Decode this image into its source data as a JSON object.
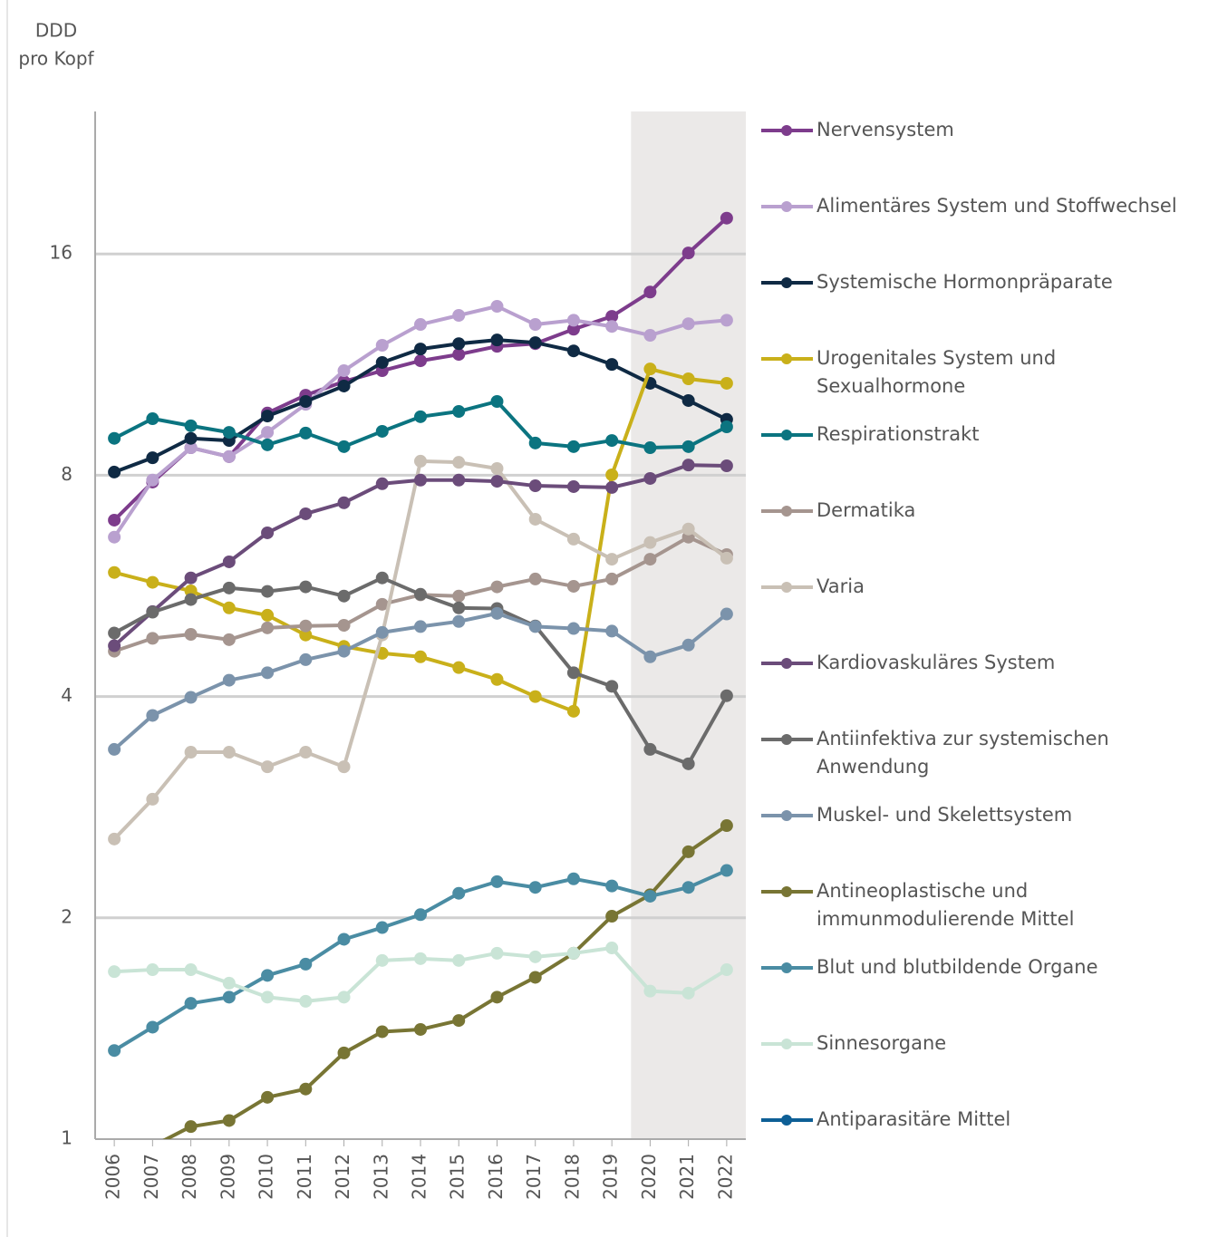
{
  "chart_data": {
    "type": "line",
    "y_label": [
      "DDD",
      "pro Kopf"
    ],
    "categories": [
      "2006",
      "2007",
      "2008",
      "2009",
      "2010",
      "2011",
      "2012",
      "2013",
      "2014",
      "2015",
      "2016",
      "2017",
      "2018",
      "2019",
      "2020",
      "2021",
      "2022"
    ],
    "ylim": [
      1,
      25
    ],
    "yticks": [
      1,
      2,
      4,
      8,
      16
    ],
    "log_scale": true,
    "grid": true,
    "shaded_from": "2020",
    "series": [
      {
        "name": "Nervensystem",
        "color": "#7d3c8c",
        "values": [
          6.95,
          7.83,
          8.72,
          8.48,
          9.72,
          10.28,
          10.73,
          11.1,
          11.45,
          11.68,
          11.98,
          12.08,
          12.64,
          13.16,
          14.2,
          16.05,
          17.9
        ]
      },
      {
        "name": "Alimentäres System und Stoffwechsel",
        "color": "#b9a0cf",
        "values": [
          6.59,
          7.88,
          8.72,
          8.48,
          9.15,
          9.99,
          11.1,
          12.02,
          12.83,
          13.2,
          13.58,
          12.83,
          13.0,
          12.75,
          12.4,
          12.86,
          13.0
        ]
      },
      {
        "name": "Systemische Hormonpräparate",
        "color": "#0f2a44",
        "values": [
          8.08,
          8.45,
          8.98,
          8.92,
          9.63,
          10.08,
          10.58,
          11.39,
          11.88,
          12.08,
          12.22,
          12.12,
          11.81,
          11.32,
          10.67,
          10.11,
          9.53
        ]
      },
      {
        "name": "Urogenitales System und\nSexualhormone",
        "color": "#c9b01a",
        "values": [
          5.9,
          5.72,
          5.57,
          5.28,
          5.16,
          4.85,
          4.68,
          4.58,
          4.53,
          4.38,
          4.22,
          4.0,
          3.82,
          8.01,
          11.16,
          10.82,
          10.67
        ]
      },
      {
        "name": "Respirationstrakt",
        "color": "#0b7480",
        "values": [
          8.98,
          9.55,
          9.34,
          9.15,
          8.8,
          9.13,
          8.75,
          9.18,
          9.61,
          9.77,
          10.08,
          8.85,
          8.75,
          8.92,
          8.72,
          8.75,
          9.31
        ]
      },
      {
        "name": "Dermatika",
        "color": "#a5958f",
        "values": [
          4.61,
          4.8,
          4.86,
          4.78,
          4.96,
          4.99,
          5.0,
          5.34,
          5.5,
          5.48,
          5.64,
          5.78,
          5.65,
          5.78,
          6.15,
          6.59,
          6.24
        ]
      },
      {
        "name": "Varia",
        "color": "#c9c0b5",
        "values": [
          2.56,
          2.9,
          3.36,
          3.36,
          3.21,
          3.36,
          3.21,
          4.85,
          8.36,
          8.33,
          8.17,
          6.97,
          6.55,
          6.15,
          6.48,
          6.76,
          6.17
        ]
      },
      {
        "name": "Kardiovaskuläres System",
        "color": "#6b4c7a",
        "values": [
          4.69,
          5.22,
          5.8,
          6.1,
          6.68,
          7.09,
          7.34,
          7.79,
          7.88,
          7.88,
          7.85,
          7.74,
          7.72,
          7.7,
          7.92,
          8.26,
          8.24
        ]
      },
      {
        "name": "Antiinfektiva zur systemischen\nAnwendung",
        "color": "#6b6b6b",
        "values": [
          4.88,
          5.21,
          5.42,
          5.62,
          5.56,
          5.64,
          5.48,
          5.8,
          5.51,
          5.28,
          5.27,
          4.99,
          4.31,
          4.13,
          3.39,
          3.24,
          4.01
        ]
      },
      {
        "name": "Muskel- und Skelettsystem",
        "color": "#7b93ab",
        "values": [
          3.39,
          3.77,
          3.99,
          4.21,
          4.31,
          4.49,
          4.61,
          4.89,
          4.98,
          5.06,
          5.19,
          4.98,
          4.95,
          4.91,
          4.53,
          4.7,
          5.18
        ]
      },
      {
        "name": "Antineoplastische und\nimmunmodulierende Mittel",
        "color": "#787534",
        "values": [
          0.9,
          0.978,
          1.04,
          1.06,
          1.14,
          1.17,
          1.31,
          1.4,
          1.41,
          1.45,
          1.56,
          1.66,
          1.79,
          2.01,
          2.15,
          2.46,
          2.67
        ]
      },
      {
        "name": "Blut und blutbildende Organe",
        "color": "#4a8ca3",
        "values": [
          1.32,
          1.42,
          1.53,
          1.56,
          1.67,
          1.73,
          1.87,
          1.94,
          2.02,
          2.16,
          2.24,
          2.2,
          2.26,
          2.21,
          2.14,
          2.2,
          2.32
        ]
      },
      {
        "name": "Sinnesorgane",
        "color": "#c9e4d6",
        "values": [
          1.69,
          1.7,
          1.7,
          1.63,
          1.56,
          1.54,
          1.56,
          1.75,
          1.76,
          1.75,
          1.79,
          1.77,
          1.79,
          1.82,
          1.59,
          1.58,
          1.7
        ]
      },
      {
        "name": "Antiparasitäre Mittel",
        "color": "#0d5f96",
        "values": [
          null,
          null,
          null,
          null,
          null,
          null,
          null,
          null,
          null,
          null,
          null,
          null,
          null,
          null,
          null,
          null,
          null
        ]
      }
    ]
  }
}
